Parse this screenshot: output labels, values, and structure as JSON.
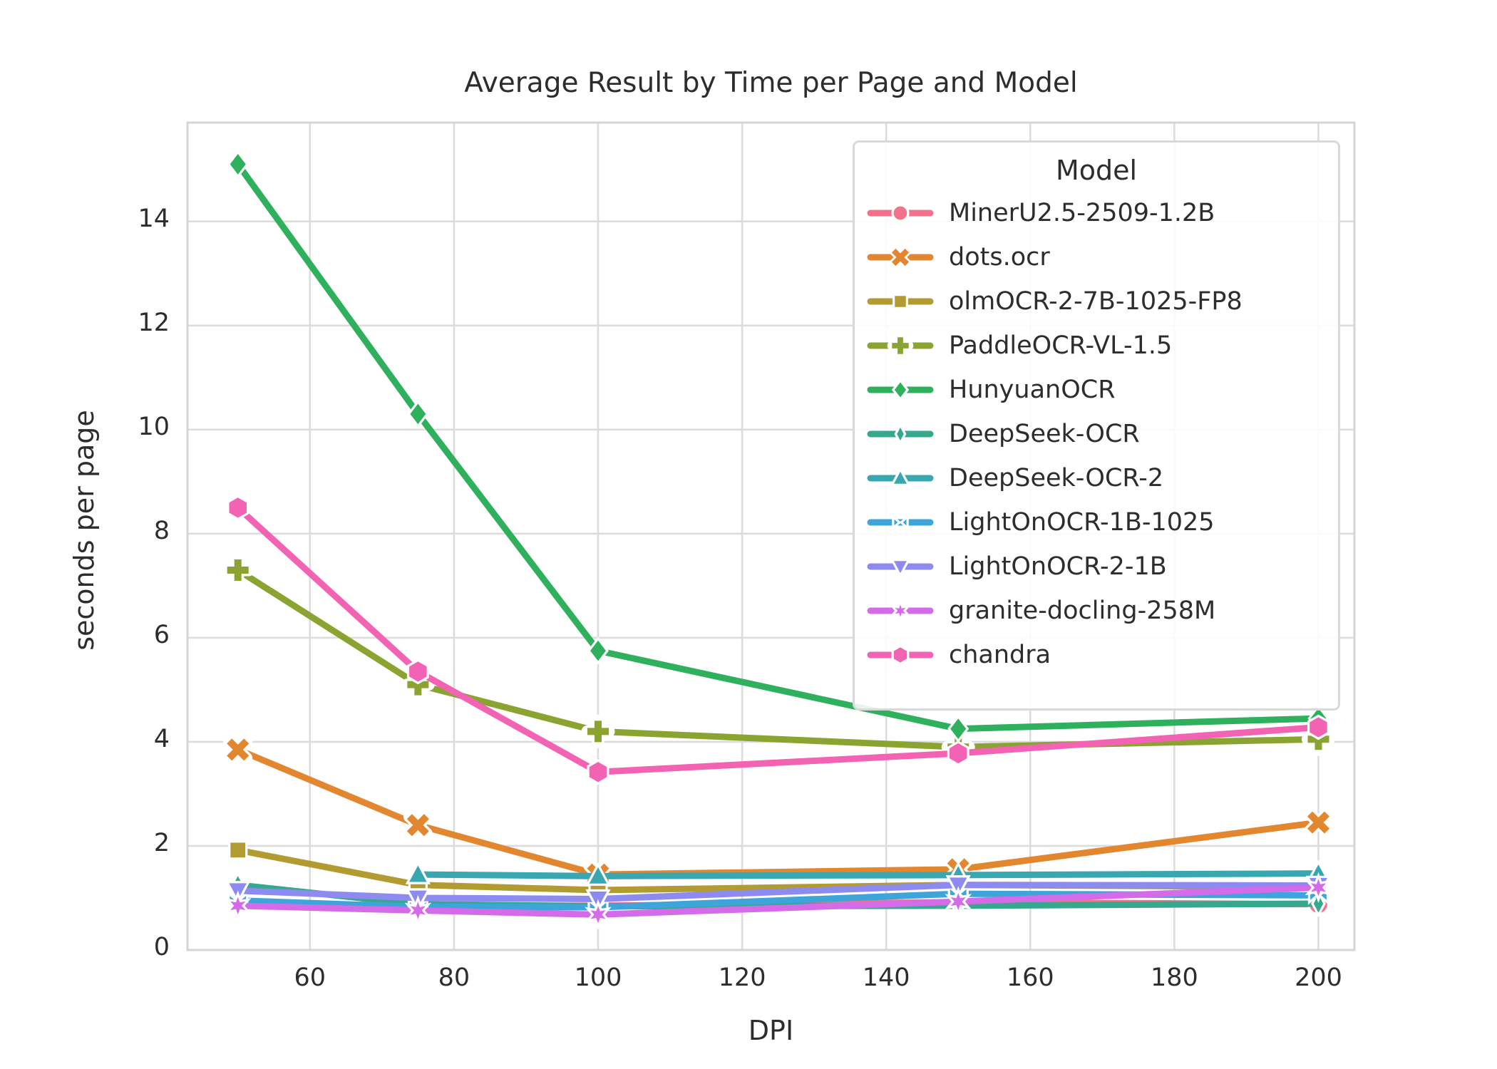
{
  "title": "Average Result by Time per Page and Model",
  "x_axis_label": "DPI",
  "y_axis_label": "seconds per page",
  "legend": {
    "title": "Model"
  },
  "chart_data": {
    "type": "line",
    "title": "Average Result by Time per Page and Model",
    "xlabel": "DPI",
    "ylabel": "seconds per page",
    "legend_title": "Model",
    "legend_position": "upper right",
    "grid": true,
    "x": [
      50,
      75,
      100,
      150,
      200
    ],
    "xticks": [
      60,
      80,
      100,
      120,
      140,
      160,
      180,
      200
    ],
    "yticks": [
      0,
      2,
      4,
      6,
      8,
      10,
      12,
      14
    ],
    "xlim": [
      43,
      205
    ],
    "ylim": [
      0,
      15.9
    ],
    "grid_color": "#dcdcdc",
    "spine_color": "#d5d5d5",
    "series": [
      {
        "name": "MinerU2.5-2509-1.2B",
        "color": "#f2728c",
        "marker": "circle",
        "values": [
          0.9,
          0.85,
          0.85,
          0.92,
          0.88
        ]
      },
      {
        "name": "dots.ocr",
        "color": "#e2862f",
        "marker": "x",
        "values": [
          3.85,
          2.4,
          1.45,
          1.55,
          2.45
        ]
      },
      {
        "name": "olmOCR-2-7B-1025-FP8",
        "color": "#b29b31",
        "marker": "square",
        "values": [
          1.92,
          1.25,
          1.15,
          1.25,
          1.21
        ]
      },
      {
        "name": "PaddleOCR-VL-1.5",
        "color": "#8aa331",
        "marker": "plus",
        "values": [
          7.3,
          5.1,
          4.2,
          3.9,
          4.05
        ]
      },
      {
        "name": "HunyuanOCR",
        "color": "#2eb05c",
        "marker": "diamond",
        "values": [
          15.1,
          10.3,
          5.75,
          4.25,
          4.45
        ]
      },
      {
        "name": "DeepSeek-OCR",
        "color": "#35a88d",
        "marker": "thin-diamond",
        "values": [
          1.25,
          0.88,
          0.84,
          0.85,
          0.89
        ]
      },
      {
        "name": "DeepSeek-OCR-2",
        "color": "#39a7b0",
        "marker": "triangle-up",
        "values": [
          null,
          1.45,
          1.42,
          1.44,
          1.47
        ]
      },
      {
        "name": "LightOnOCR-1B-1025",
        "color": "#3da5da",
        "marker": "bowtie",
        "values": [
          0.95,
          0.83,
          0.82,
          1.08,
          1.05
        ]
      },
      {
        "name": "LightOnOCR-2-1B",
        "color": "#8d8bf0",
        "marker": "triangle-down",
        "values": [
          1.14,
          1.0,
          0.98,
          1.25,
          1.24
        ]
      },
      {
        "name": "granite-docling-258M",
        "color": "#d46be9",
        "marker": "star6",
        "values": [
          0.85,
          0.76,
          0.68,
          0.93,
          1.2
        ]
      },
      {
        "name": "chandra",
        "color": "#f263b4",
        "marker": "hexagon",
        "values": [
          8.5,
          5.35,
          3.42,
          3.78,
          4.28
        ]
      }
    ]
  }
}
